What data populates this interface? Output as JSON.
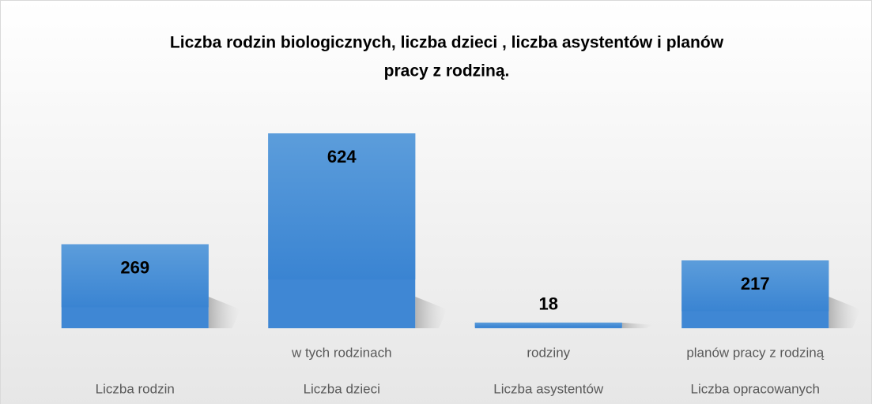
{
  "chart_data": {
    "type": "bar",
    "title": [
      "Liczba rodzin biologicznych, liczba dzieci , liczba asystentów i planów",
      "pracy z rodziną."
    ],
    "categories": [
      [
        "Liczba rodzin"
      ],
      [
        "w tych rodzinach",
        "Liczba dzieci"
      ],
      [
        "rodziny",
        "Liczba asystentów"
      ],
      [
        "planów pracy z rodziną",
        "Liczba opracowanych"
      ]
    ],
    "values": [
      269,
      624,
      18,
      217
    ],
    "color": "#3f87d4"
  }
}
